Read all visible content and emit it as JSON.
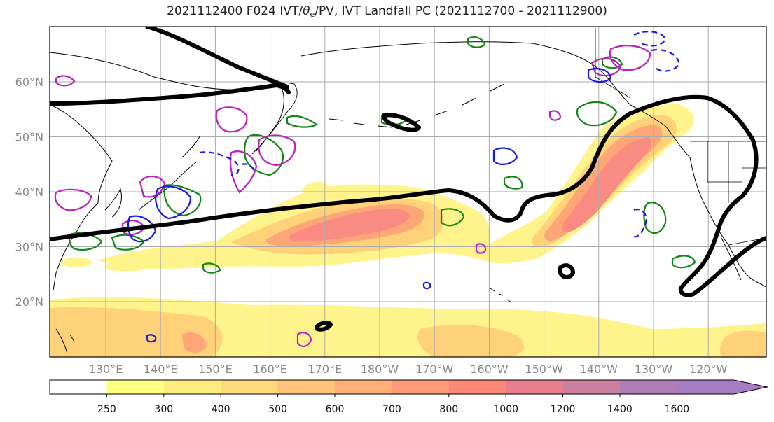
{
  "title": {
    "prefix": "2021112400 F024 IVT/",
    "theta": "θ",
    "theta_sub": "e",
    "suffix": "/PV, IVT Landfall PC (2021112700 - 2021112900)"
  },
  "axes": {
    "lon_labels": [
      "130°E",
      "140°E",
      "150°E",
      "160°E",
      "170°E",
      "180°W",
      "170°W",
      "160°W",
      "150°W",
      "140°W",
      "130°W",
      "120°W"
    ],
    "lat_labels": [
      "60°N",
      "50°N",
      "40°N",
      "30°N",
      "20°N"
    ]
  },
  "colorbar": {
    "levels": [
      "250",
      "300",
      "400",
      "500",
      "600",
      "700",
      "800",
      "1000",
      "1200",
      "1400",
      "1600"
    ],
    "colors": [
      "#ffffff",
      "#ffff80",
      "#ffec7f",
      "#ffd97a",
      "#ffc478",
      "#ffaf77",
      "#ff9a77",
      "#ff8778",
      "#e97f8c",
      "#cd7f9f",
      "#b07db8",
      "#a67cc5"
    ]
  },
  "fills": {
    "ivt_low": "#fff48c",
    "ivt_mid": "#ffd27a",
    "ivt_high": "#ffa677",
    "ivt_core": "#f98b82"
  },
  "contours": {
    "theta_e": "#000000",
    "pv_green": "#118811",
    "pv_magenta": "#bb22bb",
    "pv_blue": "#1b1bdd"
  }
}
